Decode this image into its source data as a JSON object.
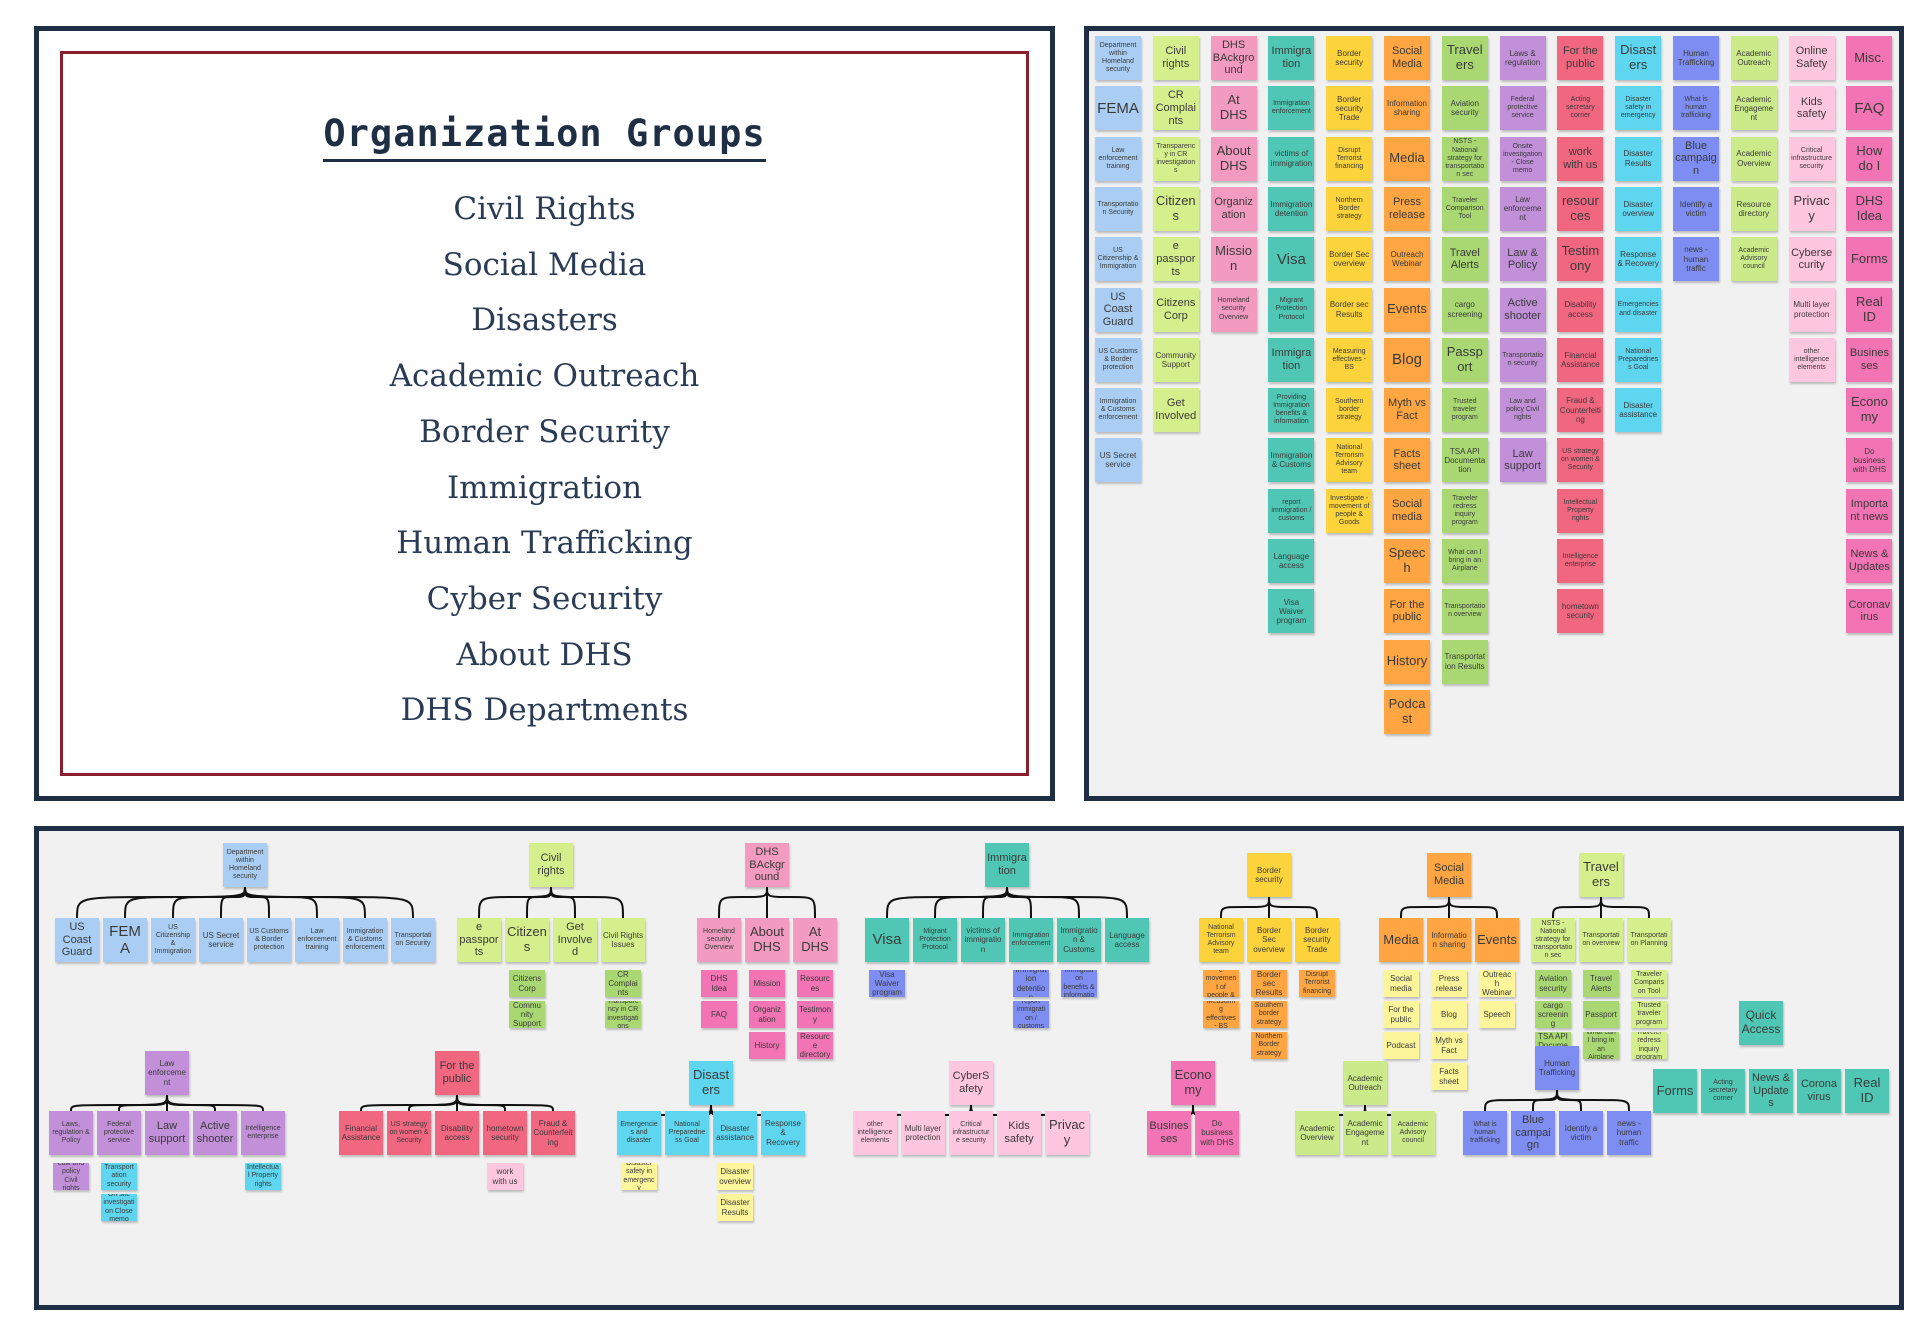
{
  "groups_panel": {
    "title": "Organization Groups",
    "items": [
      "Civil Rights",
      "Social Media",
      "Disasters",
      "Academic Outreach",
      "Border Security",
      "Immigration",
      "Human Trafficking",
      "Cyber Security",
      "About DHS",
      "DHS Departments"
    ]
  },
  "colors": {
    "blue": "#a9cdf3",
    "lime": "#d6ef8d",
    "pink": "#f29ac0",
    "teal": "#4fc7b4",
    "yellow": "#fcd33a",
    "orange": "#ffa542",
    "green": "#a9d873",
    "purple": "#c190d8",
    "red": "#f26780",
    "cyan": "#5fd6f0",
    "indigo": "#7d8df2",
    "lightgreen": "#cbeb8a",
    "lightpink": "#ffc6e0",
    "magenta": "#f274b4",
    "paleyellow": "#fdf59a",
    "frame": "#1e2f45",
    "frame_inner": "#8b1e2d"
  },
  "card_sort": {
    "columns": [
      {
        "color": "blue",
        "cards": [
          "Department within Homeland security",
          "FEMA",
          "Law enforcement training",
          "Transportation Security",
          "US Citizenship & Immigration",
          "US Coast Guard",
          "US Customs & Border protection",
          "Immigration & Customs enforcement",
          "US Secret service"
        ]
      },
      {
        "color": "lime",
        "cards": [
          "Civil rights",
          "CR Complaints",
          "Transparency in CR investigations",
          "Citizens",
          "e passports",
          "Citizens Corp",
          "Community Support",
          "Get Involved"
        ]
      },
      {
        "color": "pink",
        "cards": [
          "DHS BAckground",
          "At DHS",
          "About DHS",
          "Organization",
          "Mission",
          "Homeland security Overview"
        ]
      },
      {
        "color": "teal",
        "cards": [
          "Immigration",
          "Immigration enforcement",
          "victims of immigration",
          "Immigration detention",
          "Visa",
          "Migrant Protection Protocol",
          "Immigration",
          "Providing Immigration benefits & information",
          "Immigration & Customs",
          "report immigration / customs",
          "Language access",
          "Visa Waiver program"
        ]
      },
      {
        "color": "yellow",
        "cards": [
          "Border security",
          "Border security Trade",
          "Disrupt Terrorist financing",
          "Northern Border strategy",
          "Border Sec overview",
          "Border sec Results",
          "Measuring effectives - BS",
          "Southern border strategy",
          "National Terrorism Advisory team",
          "Investigate - movement of people & Goods"
        ]
      },
      {
        "color": "orange",
        "cards": [
          "Social Media",
          "Information sharing",
          "Media",
          "Press release",
          "Outreach Webinar",
          "Events",
          "Blog",
          "Myth vs Fact",
          "Facts sheet",
          "Social media",
          "Speech",
          "For the public",
          "History",
          "Podcast"
        ]
      },
      {
        "color": "green",
        "cards": [
          "Travelers",
          "Aviation security",
          "NSTS - National strategy for transportation sec",
          "Traveler Comparison Tool",
          "Travel Alerts",
          "cargo screening",
          "Passport",
          "Trusted traveler program",
          "TSA API Documentation",
          "Traveler redress inquiry program",
          "What can I bring in an Airplane",
          "Transportation overview",
          "Transportation Results"
        ]
      },
      {
        "color": "purple",
        "cards": [
          "Laws & regulation",
          "Federal protective service",
          "Onsite investigation - Close memo",
          "Law enforcement",
          "Law & Policy",
          "Active shooter",
          "Transportation security",
          "Law and policy Civil rights",
          "Law support"
        ]
      },
      {
        "color": "red",
        "cards": [
          "For the public",
          "Acting secretary corner",
          "work with us",
          "resources",
          "Testimony",
          "Disability access",
          "Financial Assistance",
          "Fraud & Counterfeiting",
          "US strategy on women & Security",
          "Intellectual Property rights",
          "Intelligence enterprise",
          "hometown security"
        ]
      },
      {
        "color": "cyan",
        "cards": [
          "Disasters",
          "Disaster safety in emergency",
          "Disaster Results",
          "Disaster overview",
          "Response & Recovery",
          "Emergencies and disaster",
          "National Preparedness Goal",
          "Disaster assistance"
        ]
      },
      {
        "color": "indigo",
        "cards": [
          "Human Trafficking",
          "What is human trafficking",
          "Blue campaign",
          "Identify a victim",
          "news - human traffic"
        ]
      },
      {
        "color": "lightgreen",
        "cards": [
          "Academic Outreach",
          "Academic Engagement",
          "Academic Overview",
          "Resource directory",
          "Academic Advisory council"
        ]
      },
      {
        "color": "lightpink",
        "cards": [
          "Online Safety",
          "Kids safety",
          "Critical infrastructure security",
          "Privacy",
          "Cybersecurity",
          "Multi layer protection",
          "other intelligence elements"
        ]
      },
      {
        "color": "magenta",
        "cards": [
          "Misc.",
          "FAQ",
          "How do I",
          "DHS Idea",
          "Forms",
          "Real ID",
          "Businesses",
          "Economy",
          "Do business with DHS",
          "Important news",
          "News & Updates",
          "Coronavirus"
        ]
      }
    ]
  },
  "tree": {
    "groups": [
      {
        "root": "Department within Homeland security",
        "color": "blue",
        "children": [
          {
            "label": "US Coast Guard"
          },
          {
            "label": "FEMA"
          },
          {
            "label": "US Citizenship & Immigration"
          },
          {
            "label": "US Secret service"
          },
          {
            "label": "US Customs & Border protection"
          },
          {
            "label": "Law enforcement training"
          },
          {
            "label": "Immigration & Customs enforcement"
          },
          {
            "label": "Transportation Security"
          }
        ]
      },
      {
        "root": "Civil rights",
        "color": "lime",
        "children": [
          {
            "label": "e passports"
          },
          {
            "label": "Citizens",
            "sub": [
              "Citizens Corp",
              "Community Support"
            ],
            "subcolor": "green"
          },
          {
            "label": "Get Involved"
          },
          {
            "label": "Civil Rights Issues",
            "sub": [
              "CR Complaints",
              "Transparency in CR investigations"
            ],
            "subcolor": "green"
          }
        ]
      },
      {
        "root": "DHS BAckground",
        "color": "pink",
        "children": [
          {
            "label": "Homeland security Overview",
            "sub": [
              "DHS Idea",
              "FAQ"
            ],
            "subcolor": "magenta"
          },
          {
            "label": "About DHS",
            "sub": [
              "Mission",
              "Organization",
              "History"
            ],
            "subcolor": "magenta"
          },
          {
            "label": "At DHS",
            "sub": [
              "Resources",
              "Testimony",
              "Resource directory"
            ],
            "subcolor": "magenta"
          }
        ]
      },
      {
        "root": "Immigration",
        "color": "teal",
        "children": [
          {
            "label": "Visa",
            "sub": [
              "Visa Waiver program"
            ],
            "subcolor": "indigo"
          },
          {
            "label": "Migrant Protection Protocol"
          },
          {
            "label": "victims of immigration"
          },
          {
            "label": "Immigration enforcement",
            "sub": [
              "Immigration detention",
              "report immigration / customs"
            ],
            "subcolor": "indigo"
          },
          {
            "label": "Immigration & Customs",
            "sub": [
              "Providing Immigration benefits & information"
            ],
            "subcolor": "indigo"
          },
          {
            "label": "Language access"
          }
        ]
      },
      {
        "root": "Border security",
        "color": "yellow",
        "children": [
          {
            "label": "National Terrorism Advisory team",
            "sub": [
              "Investigate movement of people & Goods",
              "Measuring effectives - BS"
            ],
            "subcolor": "orange"
          },
          {
            "label": "Border Sec overview",
            "sub": [
              "Border sec Results",
              "Southern border strategy",
              "Northern Border strategy"
            ],
            "subcolor": "orange"
          },
          {
            "label": "Border security Trade",
            "sub": [
              "Disrupt Terrorist financing"
            ],
            "subcolor": "orange"
          }
        ]
      },
      {
        "root": "Social Media",
        "color": "orange",
        "children": [
          {
            "label": "Media",
            "sub": [
              "Social media",
              "For the public",
              "Podcast"
            ],
            "subcolor": "paleyellow"
          },
          {
            "label": "Information sharing",
            "sub": [
              "Press release",
              "Blog",
              "Myth vs Fact",
              "Facts sheet"
            ],
            "subcolor": "paleyellow"
          },
          {
            "label": "Events",
            "sub": [
              "Outreach Webinar",
              "Speech"
            ],
            "subcolor": "paleyellow"
          }
        ]
      },
      {
        "root": "Travelers",
        "color": "lime",
        "children": [
          {
            "label": "NSTS - National strategy for transportation sec",
            "sub": [
              "Aviation security",
              "cargo screening",
              "TSA API Documentation"
            ],
            "subcolor": "green"
          },
          {
            "label": "Transportation overview",
            "sub": [
              "Travel Alerts",
              "Passport",
              "What can I bring in an Airplane"
            ],
            "subcolor": "green"
          },
          {
            "label": "Transportation Planning",
            "sub": [
              "Traveler Comparison Tool",
              "Trusted traveler program",
              "Traveler redress inquiry program"
            ],
            "subcolor": "lime"
          }
        ]
      },
      {
        "root": "Law enforcement",
        "color": "purple",
        "children": [
          {
            "label": "Laws, regulation & Policy",
            "sub": [
              "Law and policy Civil rights"
            ],
            "subcolor": "purple"
          },
          {
            "label": "Federal protective service",
            "sub": [
              "Transportation security",
              "On site investigation Close memo"
            ],
            "subcolor": "cyan"
          },
          {
            "label": "Law support"
          },
          {
            "label": "Active shooter"
          },
          {
            "label": "Intelligence enterprise",
            "sub": [
              "Intellectual Property rights"
            ],
            "subcolor": "cyan"
          }
        ]
      },
      {
        "root": "For the public",
        "color": "red",
        "children": [
          {
            "label": "Financial Assistance"
          },
          {
            "label": "US strategy on women & Security"
          },
          {
            "label": "Disability access"
          },
          {
            "label": "hometown security",
            "sub": [
              "work with us"
            ],
            "subcolor": "lightpink"
          },
          {
            "label": "Fraud & Counterfeiting"
          }
        ]
      },
      {
        "root": "Disasters",
        "color": "cyan",
        "children": [
          {
            "label": "Emergencies and disaster",
            "sub": [
              "Disaster safety in emergency"
            ],
            "subcolor": "paleyellow"
          },
          {
            "label": "National Preparedness Goal"
          },
          {
            "label": "Disaster assistance",
            "sub": [
              "Disaster overview",
              "Disaster Results"
            ],
            "subcolor": "paleyellow"
          },
          {
            "label": "Response & Recovery"
          }
        ]
      },
      {
        "root": "CyberSafety",
        "color": "lightpink",
        "children": [
          {
            "label": "other intelligence elements"
          },
          {
            "label": "Multi layer protection"
          },
          {
            "label": "Critical infrastructure security"
          },
          {
            "label": "Kids safety"
          },
          {
            "label": "Privacy"
          }
        ]
      },
      {
        "root": "Economy",
        "color": "magenta",
        "children": [
          {
            "label": "Businesses"
          },
          {
            "label": "Do business with DHS"
          }
        ]
      },
      {
        "root": "Academic Outreach",
        "color": "lightgreen",
        "children": [
          {
            "label": "Academic Overview"
          },
          {
            "label": "Academic Engagement"
          },
          {
            "label": "Academic Advisory council"
          }
        ]
      },
      {
        "root": "Human Trafficking",
        "color": "indigo",
        "children": [
          {
            "label": "What is human trafficking"
          },
          {
            "label": "Blue campaign"
          },
          {
            "label": "Identify a victim"
          },
          {
            "label": "news - human traffic"
          }
        ]
      }
    ],
    "quick_access": {
      "label": "Quick Access",
      "color": "teal",
      "items": [
        "Forms",
        "Acting secretary corner",
        "News & Updates",
        "Coronavirus",
        "Real ID"
      ]
    }
  }
}
